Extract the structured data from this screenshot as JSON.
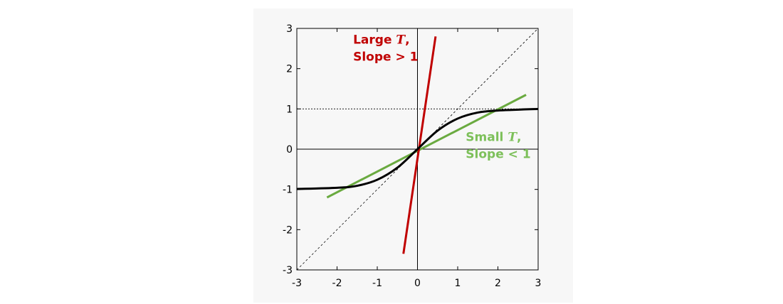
{
  "chart_data": {
    "type": "line",
    "title": "",
    "xlabel": "",
    "ylabel": "",
    "xlim": [
      -3,
      3
    ],
    "ylim": [
      -3,
      3
    ],
    "xticks": [
      -3,
      -2,
      -1,
      0,
      1,
      2,
      3
    ],
    "yticks": [
      -3,
      -2,
      -1,
      0,
      1,
      2,
      3
    ],
    "grid": false,
    "colors": {
      "sigmoid": "#000000",
      "large_t": "#c00000",
      "small_t": "#6aaa40",
      "reference": "#000000"
    },
    "series": [
      {
        "style": "sigmoid",
        "x": [
          -3,
          -2,
          -1.5,
          -1,
          -0.5,
          0,
          0.5,
          1,
          1.5,
          2,
          3
        ],
        "y": [
          -0.99,
          -0.96,
          -0.91,
          -0.76,
          -0.46,
          0,
          0.46,
          0.76,
          0.91,
          0.96,
          1.0
        ]
      },
      {
        "style": "large_t",
        "x": [
          -0.35,
          0.45
        ],
        "y": [
          -2.6,
          2.8
        ]
      },
      {
        "style": "small_t",
        "x": [
          -2.25,
          2.7
        ],
        "y": [
          -1.2,
          1.35
        ]
      },
      {
        "style": "reference_diagonal",
        "x": [
          -3,
          3
        ],
        "y": [
          -3,
          3
        ]
      },
      {
        "style": "reference_hline",
        "x": [
          -3,
          3
        ],
        "y": [
          1,
          1
        ]
      },
      {
        "style": "axis_hline",
        "x": [
          -3,
          3
        ],
        "y": [
          0,
          0
        ]
      },
      {
        "style": "axis_vline",
        "x": [
          0,
          0
        ],
        "y": [
          -3,
          3
        ]
      }
    ],
    "annotations": {
      "large": {
        "prefix": "Large ",
        "var": "T",
        "suffix": ",",
        "line2": "Slope > 1",
        "x": -1.6,
        "y": 2.62
      },
      "small": {
        "prefix": "Small ",
        "var": "T",
        "suffix": ",",
        "line2": "Slope < 1",
        "x": 1.2,
        "y": 0.2
      }
    }
  }
}
